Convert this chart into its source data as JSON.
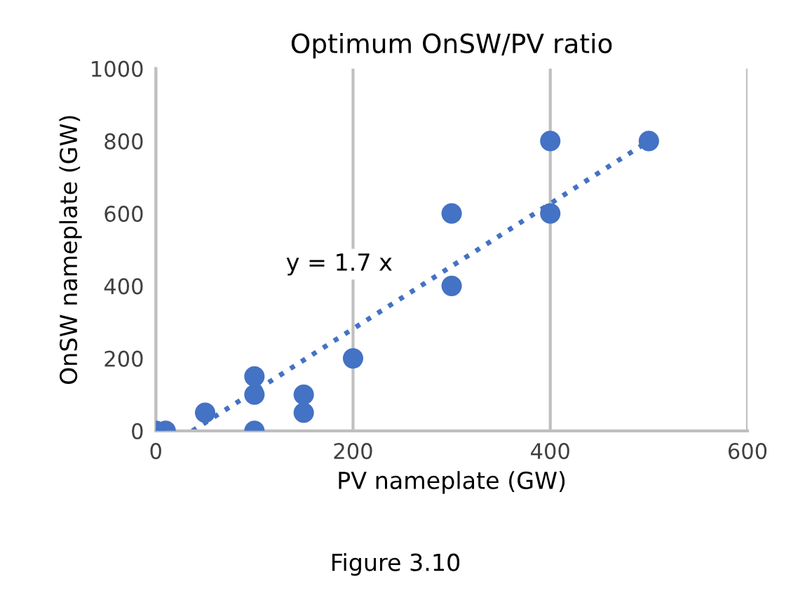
{
  "chart_data": {
    "type": "scatter",
    "title": "Optimum OnSW/PV ratio",
    "xlabel": "PV nameplate (GW)",
    "ylabel": "OnSW nameplate (GW)",
    "x": [
      0,
      10,
      50,
      100,
      100,
      100,
      150,
      150,
      200,
      300,
      300,
      400,
      400,
      500
    ],
    "series": [
      {
        "color": "#4472c4",
        "marker": "circle",
        "values": [
          0,
          0,
          50,
          0,
          100,
          150,
          50,
          100,
          200,
          400,
          600,
          600,
          800,
          800
        ]
      },
      {
        "type": "line",
        "color": "#4472c4",
        "line_style": "dotted",
        "x": [
          37,
          500
        ],
        "values": [
          0,
          800
        ]
      }
    ],
    "xlim": [
      0,
      600
    ],
    "xticks": [
      0,
      200,
      400,
      600
    ],
    "ylim": [
      0,
      1000
    ],
    "yticks": [
      0,
      200,
      400,
      600,
      800,
      1000
    ],
    "grid": "x",
    "annotations": [
      "y = 1.7 x",
      "Figure 3.10"
    ]
  }
}
